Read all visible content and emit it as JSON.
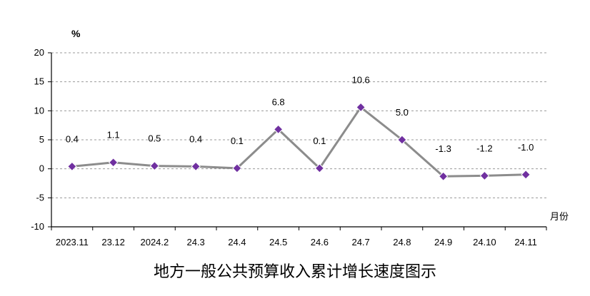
{
  "chart_data": {
    "type": "line",
    "title": "地方一般公共预算收入累计增长速度图示",
    "ylabel": "%",
    "xlabel": "月份",
    "categories": [
      "2023.11",
      "23.12",
      "2024.2",
      "24.3",
      "24.4",
      "24.5",
      "24.6",
      "24.7",
      "24.8",
      "24.9",
      "24.10",
      "24.11"
    ],
    "values": [
      0.4,
      1.1,
      0.5,
      0.4,
      0.1,
      6.8,
      0.1,
      10.6,
      5.0,
      -1.3,
      -1.2,
      -1.0
    ],
    "data_labels": [
      "0.4",
      "1.1",
      "0.5",
      "0.4",
      "0.1",
      "6.8",
      "0.1",
      "10.6",
      "5.0",
      "-1.3",
      "-1.2",
      "-1.0"
    ],
    "ylim": [
      -10,
      20
    ],
    "yticks": [
      20,
      15,
      10,
      5,
      0,
      -5,
      -10
    ],
    "grid": true,
    "line_color": "#8c8c8c",
    "marker_color": "#7030a0"
  }
}
